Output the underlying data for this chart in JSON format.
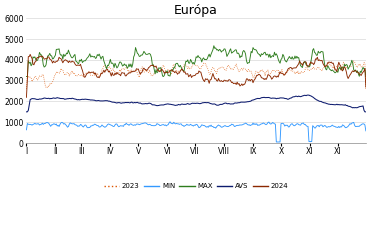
{
  "title": "Európa",
  "title_fontsize": 9,
  "ylim": [
    0,
    6000
  ],
  "yticks": [
    0,
    1000,
    2000,
    3000,
    4000,
    5000,
    6000
  ],
  "color_min": "#3399FF",
  "color_max": "#2E7D1E",
  "color_avg": "#0D1B6E",
  "color_2024": "#8B2800",
  "color_2023": "#DD5500",
  "month_labels": [
    "I",
    "II",
    "III",
    "IV",
    "V",
    "VI",
    "VII",
    "VIII",
    "IX",
    "X",
    "XI",
    "XI"
  ],
  "legend_labels": [
    "2023",
    "MIN",
    "MAX",
    "AVS",
    "2024"
  ]
}
